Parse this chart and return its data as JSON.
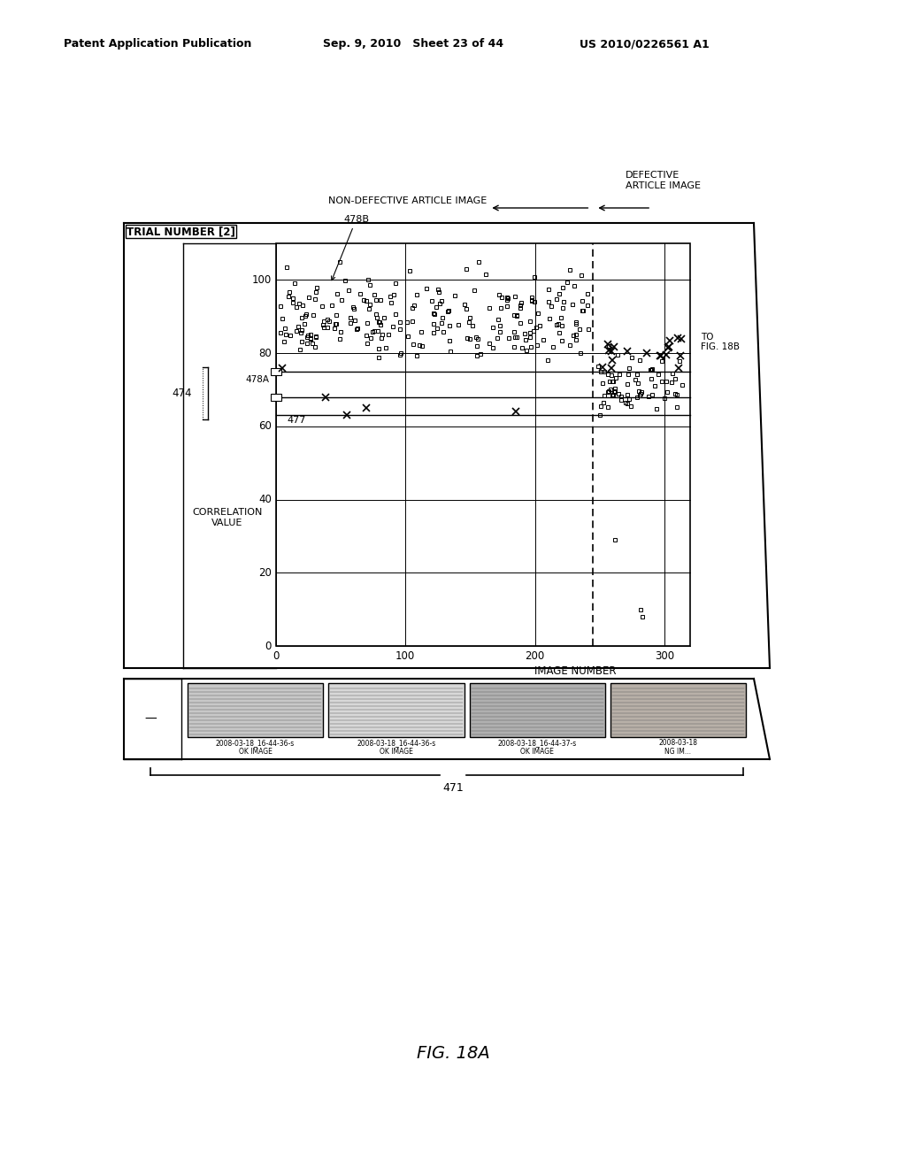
{
  "title": "FIG. 18A",
  "header_left": "Patent Application Publication",
  "header_mid": "Sep. 9, 2010   Sheet 23 of 44",
  "header_right": "US 2010/0226561 A1",
  "background_color": "#ffffff",
  "label_trial": "TRIAL NUMBER [2]",
  "label_478B": "478B",
  "label_474": "474",
  "label_478A": "478A",
  "label_477": "477",
  "label_corr": "CORRELATION\nVALUE",
  "label_image_num": "IMAGE NUMBER",
  "label_to_fig": "TO\nFIG. 18B",
  "label_non_def": "NON-DEFECTIVE ARTICLE IMAGE",
  "label_def": "DEFECTIVE\nARTICLE IMAGE",
  "label_471": "471",
  "y_ticks": [
    0,
    20,
    40,
    60,
    80,
    100
  ],
  "x_ticks": [
    0,
    100,
    200,
    300
  ],
  "dashed_line_xval": 245,
  "threshold_y1": 75,
  "threshold_y2": 68,
  "threshold_y3": 63
}
